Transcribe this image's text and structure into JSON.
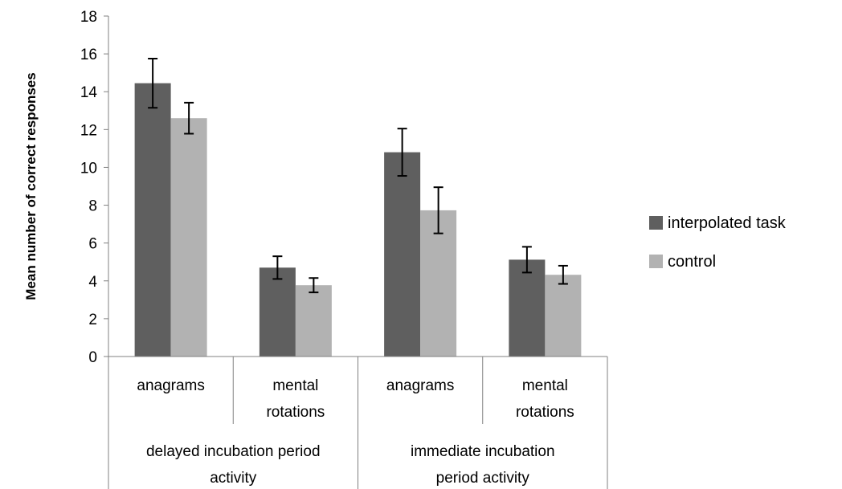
{
  "chart_data": {
    "type": "bar",
    "ylabel": "Mean number of correct responses",
    "ylim": [
      0,
      18
    ],
    "y_ticks": [
      "0",
      "2",
      "4",
      "6",
      "8",
      "10",
      "12",
      "14",
      "16",
      "18"
    ],
    "groups": [
      {
        "label_lines": [
          "delayed incubation period",
          "activity"
        ],
        "categories": [
          {
            "label_lines": [
              "anagrams"
            ]
          },
          {
            "label_lines": [
              "mental",
              "rotations"
            ]
          }
        ]
      },
      {
        "label_lines": [
          "immediate incubation",
          "period activity"
        ],
        "categories": [
          {
            "label_lines": [
              "anagrams"
            ]
          },
          {
            "label_lines": [
              "mental",
              "rotations"
            ]
          }
        ]
      }
    ],
    "series": [
      {
        "name": "interpolated task",
        "color": "#5f5f5f",
        "values": [
          14.45,
          4.7,
          10.8,
          5.12
        ],
        "errors": [
          1.3,
          0.6,
          1.25,
          0.68
        ]
      },
      {
        "name": "control",
        "color": "#b2b2b2",
        "values": [
          12.6,
          3.77,
          7.73,
          4.32
        ],
        "errors": [
          0.82,
          0.38,
          1.22,
          0.48
        ]
      }
    ],
    "legend_position": "right",
    "grid": false
  }
}
